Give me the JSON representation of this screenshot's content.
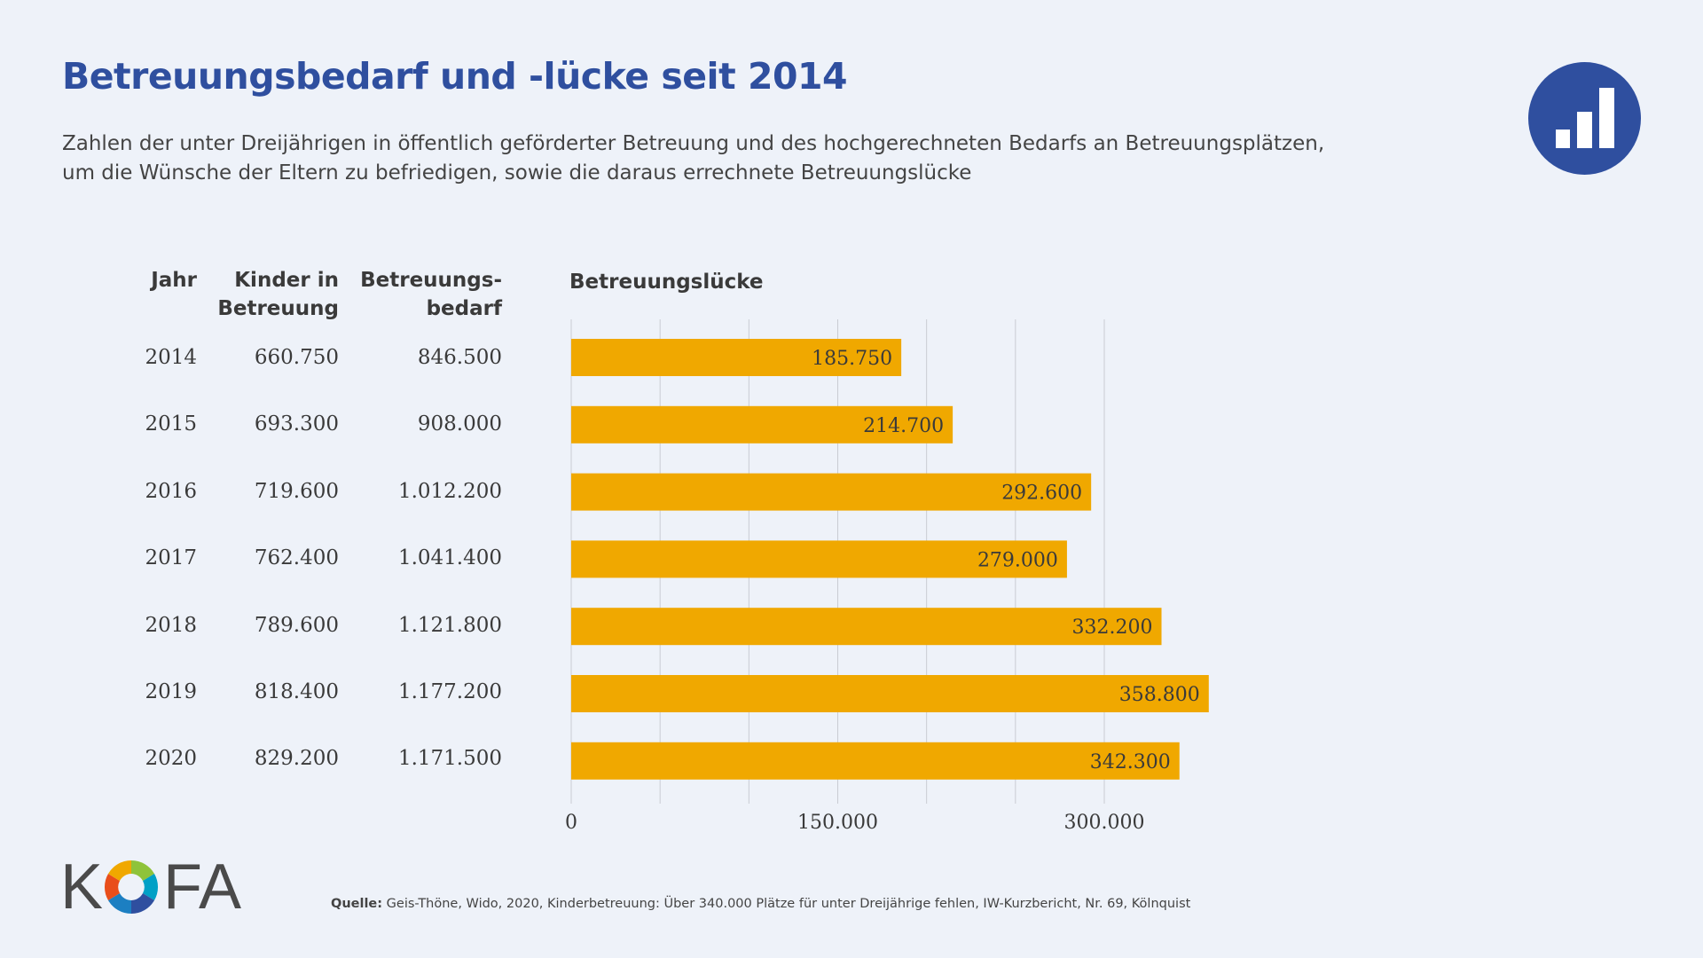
{
  "header": {
    "title": "Betreuungsbedarf und -lücke seit 2014",
    "subtitle_line1": "Zahlen der unter Dreijährigen in öffentlich geförderter Betreuung und des hochgerechneten Bedarfs an Betreuungsplätzen,",
    "subtitle_line2": "um die Wünsche der Eltern zu befriedigen, sowie die daraus errechnete Betreuungslücke"
  },
  "table": {
    "col_year": "Jahr",
    "col_kinder_line1": "Kinder in",
    "col_kinder_line2": "Betreuung",
    "col_bedarf_line1": "Betreuungs-",
    "col_bedarf_line2": "bedarf",
    "rows": [
      {
        "year": "2014",
        "kinder": "660.750",
        "bedarf": "846.500"
      },
      {
        "year": "2015",
        "kinder": "693.300",
        "bedarf": "908.000"
      },
      {
        "year": "2016",
        "kinder": "719.600",
        "bedarf": "1.012.200"
      },
      {
        "year": "2017",
        "kinder": "762.400",
        "bedarf": "1.041.400"
      },
      {
        "year": "2018",
        "kinder": "789.600",
        "bedarf": "1.121.800"
      },
      {
        "year": "2019",
        "kinder": "818.400",
        "bedarf": "1.177.200"
      },
      {
        "year": "2020",
        "kinder": "829.200",
        "bedarf": "1.171.500"
      }
    ]
  },
  "chart_data": {
    "type": "bar",
    "orientation": "horizontal",
    "title": "Betreuungslücke",
    "categories": [
      "2014",
      "2015",
      "2016",
      "2017",
      "2018",
      "2019",
      "2020"
    ],
    "values": [
      185750,
      214700,
      292600,
      279000,
      332200,
      358800,
      342300
    ],
    "value_labels": [
      "185.750",
      "214.700",
      "292.600",
      "279.000",
      "332.200",
      "358.800",
      "342.300"
    ],
    "xlim": [
      0,
      300000
    ],
    "x_gridlines": [
      0,
      50000,
      100000,
      150000,
      200000,
      250000,
      300000
    ],
    "x_ticks": [
      0,
      150000,
      300000
    ],
    "x_tick_labels": [
      "0",
      "150.000",
      "300.000"
    ],
    "grid": true,
    "bar_color": "#f0a800"
  },
  "footer": {
    "logo_text_k": "K",
    "logo_text_fa": "FA",
    "source_label": "Quelle:",
    "source_text": " Geis-Thöne, Wido, 2020, Kinderbetreuung: Über 340.000 Plätze für unter Dreijährige fehlen, IW-Kurzbericht, Nr. 69, Kölnquist"
  },
  "colors": {
    "title": "#2f4f9f",
    "bar": "#f0a800",
    "grid": "#c9ccd3",
    "background": "#eef2f9"
  },
  "icons": {
    "badge": "bar-chart-icon"
  }
}
